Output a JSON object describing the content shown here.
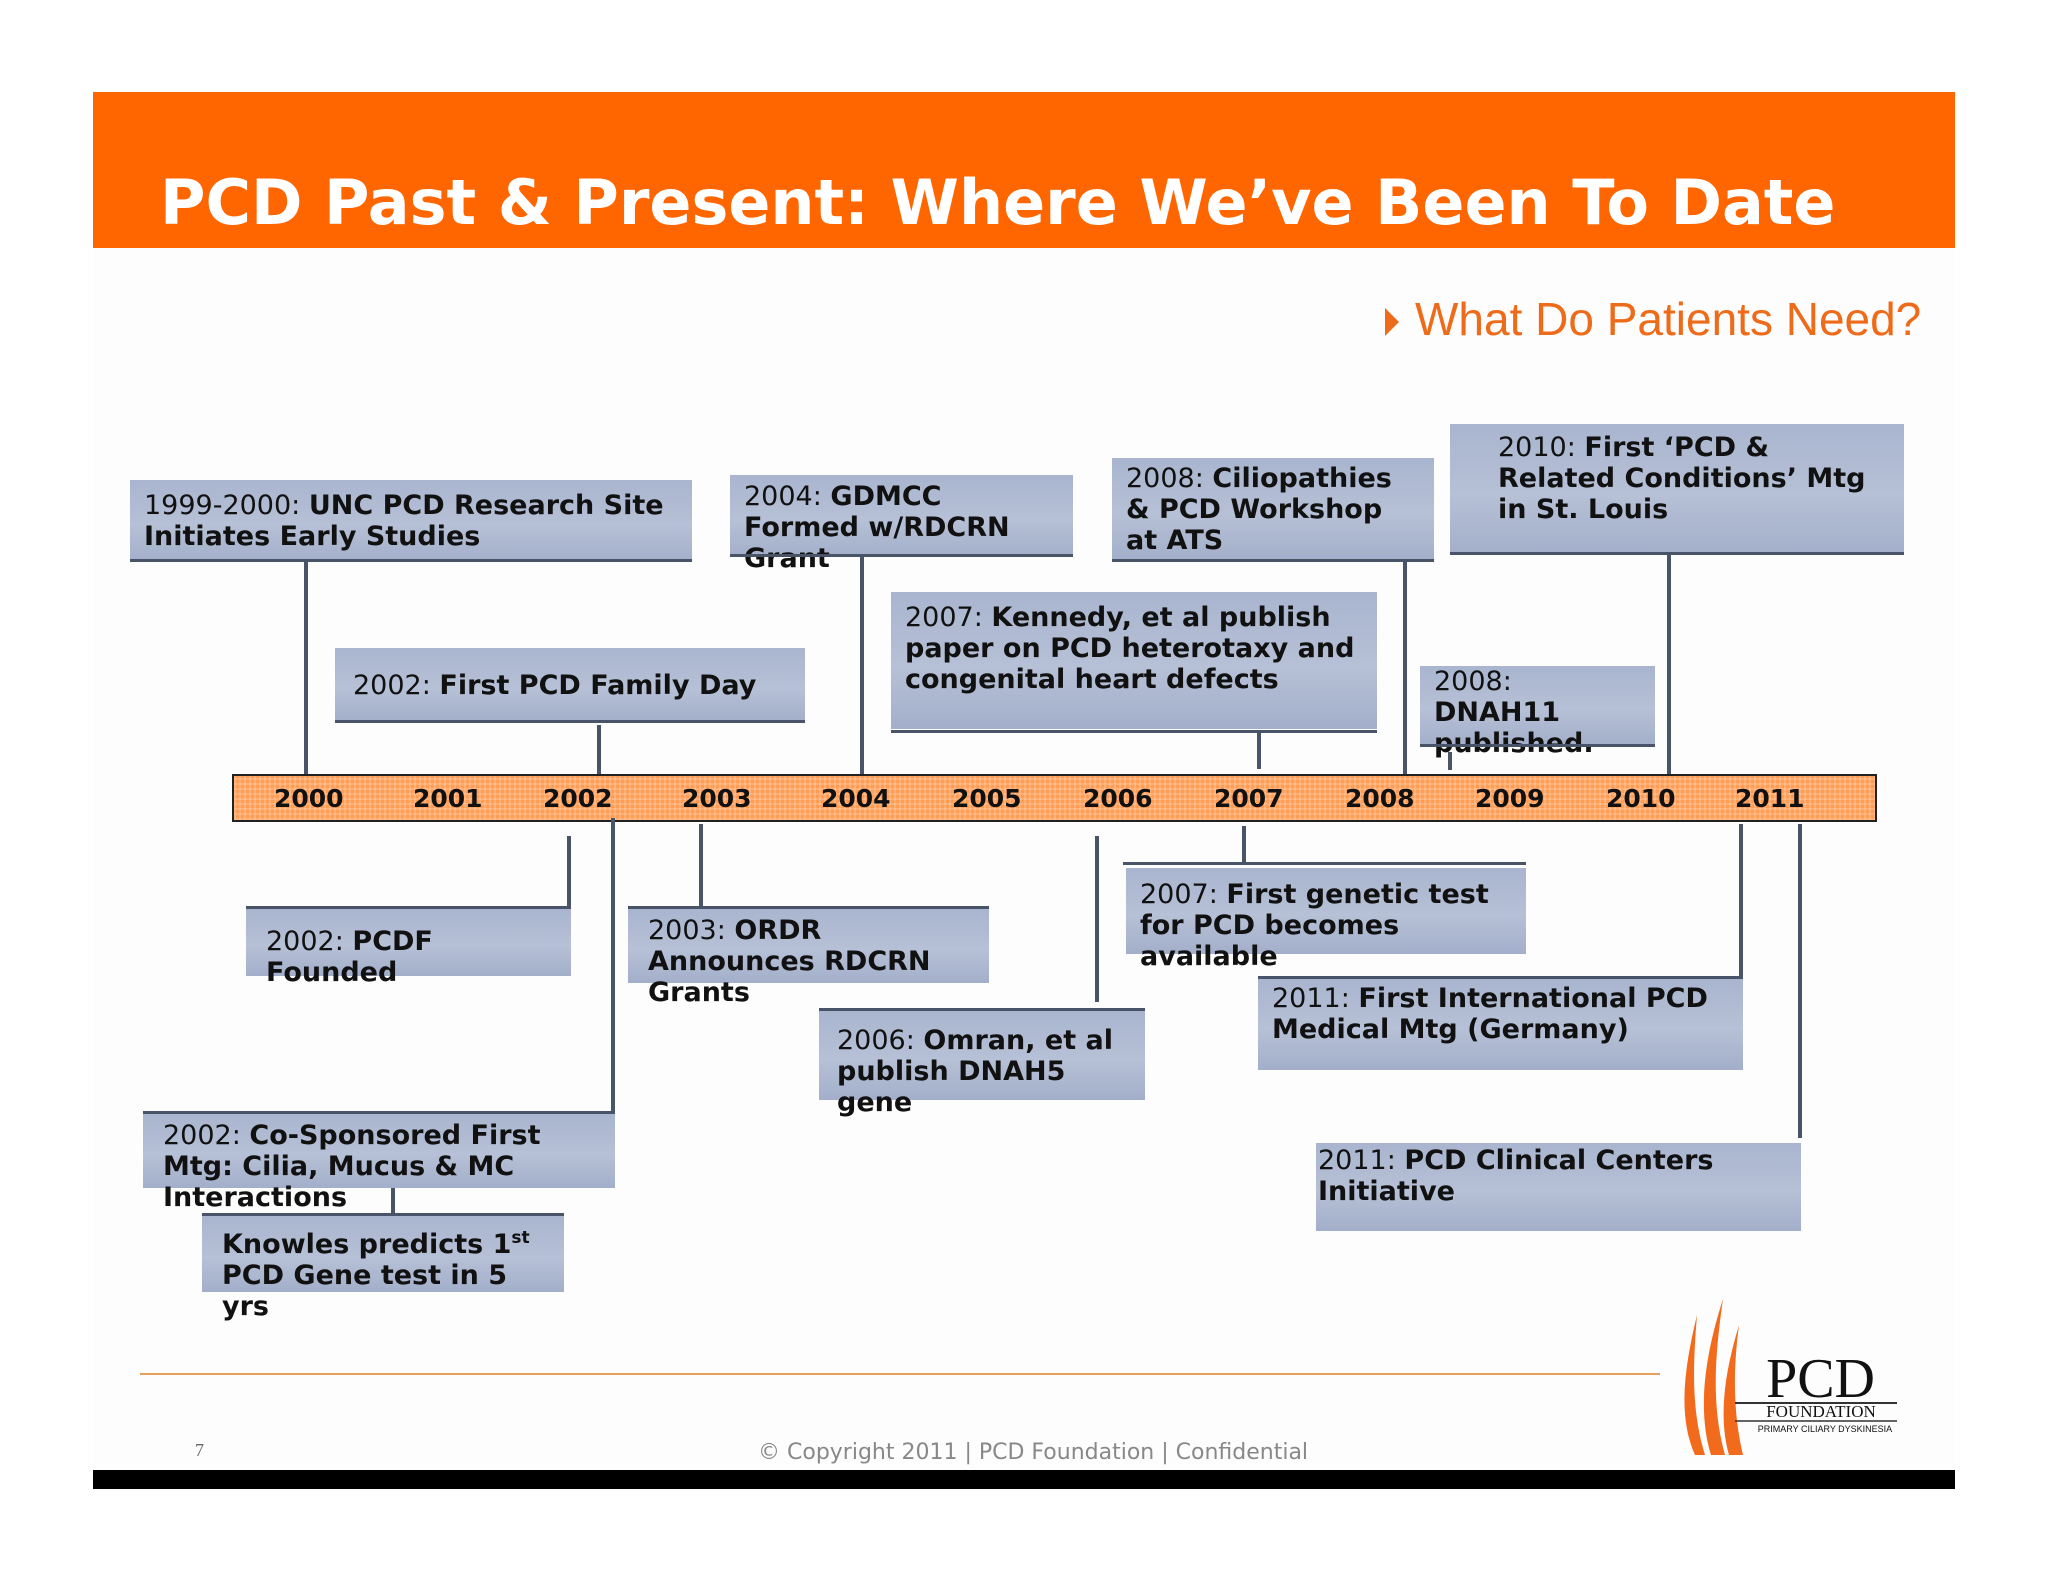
{
  "header": {
    "title": "PCD Past & Present: Where We’ve Been To Date"
  },
  "subtitle": "What Do Patients Need?",
  "timeline": {
    "years": [
      "2000",
      "2001",
      "2002",
      "2003",
      "2004",
      "2005",
      "2006",
      "2007",
      "2008",
      "2009",
      "2010",
      "2011"
    ]
  },
  "events_above": [
    {
      "year": "1999-2000:",
      "text": "UNC PCD Research Site Initiates Early Studies"
    },
    {
      "year": "2002:",
      "text": "First PCD Family Day"
    },
    {
      "year": "2004:",
      "text": "GDMCC Formed w/RDCRN Grant"
    },
    {
      "year": "2007:",
      "text": "Kennedy, et al publish paper on PCD heterotaxy  and congenital heart defects"
    },
    {
      "year": "2008:",
      "text": "Ciliopathies & PCD Workshop at ATS"
    },
    {
      "year": "2008:",
      "text": "DNAH11 published."
    },
    {
      "year": "2010:",
      "text": "First ‘PCD & Related Conditions’ Mtg in St. Louis"
    }
  ],
  "events_below": [
    {
      "year": "2002:",
      "text": "PCDF Founded"
    },
    {
      "year": "2003:",
      "text": "ORDR Announces RDCRN Grants"
    },
    {
      "year": "2006:",
      "text": "Omran, et al publish DNAH5 gene"
    },
    {
      "year": "2007:",
      "text": "First genetic test for PCD becomes available"
    },
    {
      "year": "2011:",
      "text": "First International PCD Medical Mtg (Germany)"
    },
    {
      "year": "2011:",
      "text": "PCD Clinical Centers Initiative"
    },
    {
      "year": "2002:",
      "text": "Co-Sponsored First Mtg: Cilia, Mucus & MC Interactions"
    }
  ],
  "knowles": {
    "line1": "Knowles predicts 1",
    "sup": "st",
    "line2": "PCD Gene test in 5 yrs"
  },
  "footer": {
    "page_number": "7",
    "copyright": "© Copyright 2011 | PCD Foundation | Confidential"
  },
  "logo": {
    "name": "PCD",
    "sub1": "FOUNDATION",
    "sub2": "PRIMARY CILIARY DYSKINESIA",
    "icon": "pcd-foundation-flame-logo"
  },
  "colors": {
    "header": "#ff6600",
    "accent": "#ee6b1a",
    "box": "#b1bcd3",
    "timeline": "#ff9d55"
  }
}
